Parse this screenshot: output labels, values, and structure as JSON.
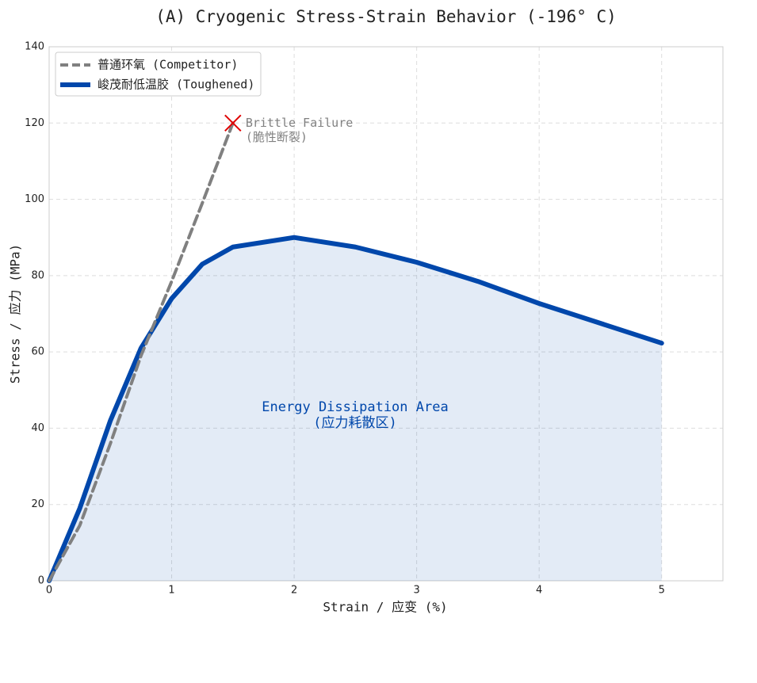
{
  "chart_data": {
    "type": "line",
    "title": "(A) Cryogenic Stress-Strain Behavior (-196° C)",
    "x_label": "Strain / 应变 (%)",
    "y_label": "Stress / 应力 (MPa)",
    "xlim": [
      0,
      5.5
    ],
    "xticks": [
      0,
      1,
      2,
      3,
      4,
      5
    ],
    "ylim": [
      0,
      140
    ],
    "yticks": [
      0,
      20,
      40,
      60,
      80,
      100,
      120,
      140
    ],
    "grid": true,
    "legend": "upper left",
    "series": [
      {
        "name": "普通环氧 (Competitor)",
        "color": "#808080",
        "style": "dashed",
        "x": [
          0,
          0.25,
          0.5,
          0.75,
          1,
          1.25,
          1.5
        ],
        "values": [
          0,
          14.5,
          36,
          59,
          78.5,
          99,
          120
        ]
      },
      {
        "name": "峻茂耐低温胶 (Toughened)",
        "color": "#0047ab",
        "style": "solid",
        "fill": true,
        "x": [
          0,
          0.25,
          0.5,
          0.75,
          1,
          1.25,
          1.5,
          2,
          2.5,
          3,
          3.5,
          4,
          4.5,
          5
        ],
        "values": [
          0,
          19,
          42,
          61,
          74,
          83,
          87.5,
          90,
          87.5,
          83.5,
          78.5,
          72.7,
          67.5,
          62.3
        ]
      }
    ],
    "failure_point": {
      "x": 1.5,
      "y": 120,
      "color": "#e00000"
    },
    "annotations": [
      {
        "lines": [
          "Brittle Failure",
          "(脆性断裂)"
        ],
        "color": "#808080"
      },
      {
        "lines": [
          "Energy Dissipation Area",
          "(应力耗散区)"
        ],
        "color": "#0047ab"
      }
    ]
  }
}
